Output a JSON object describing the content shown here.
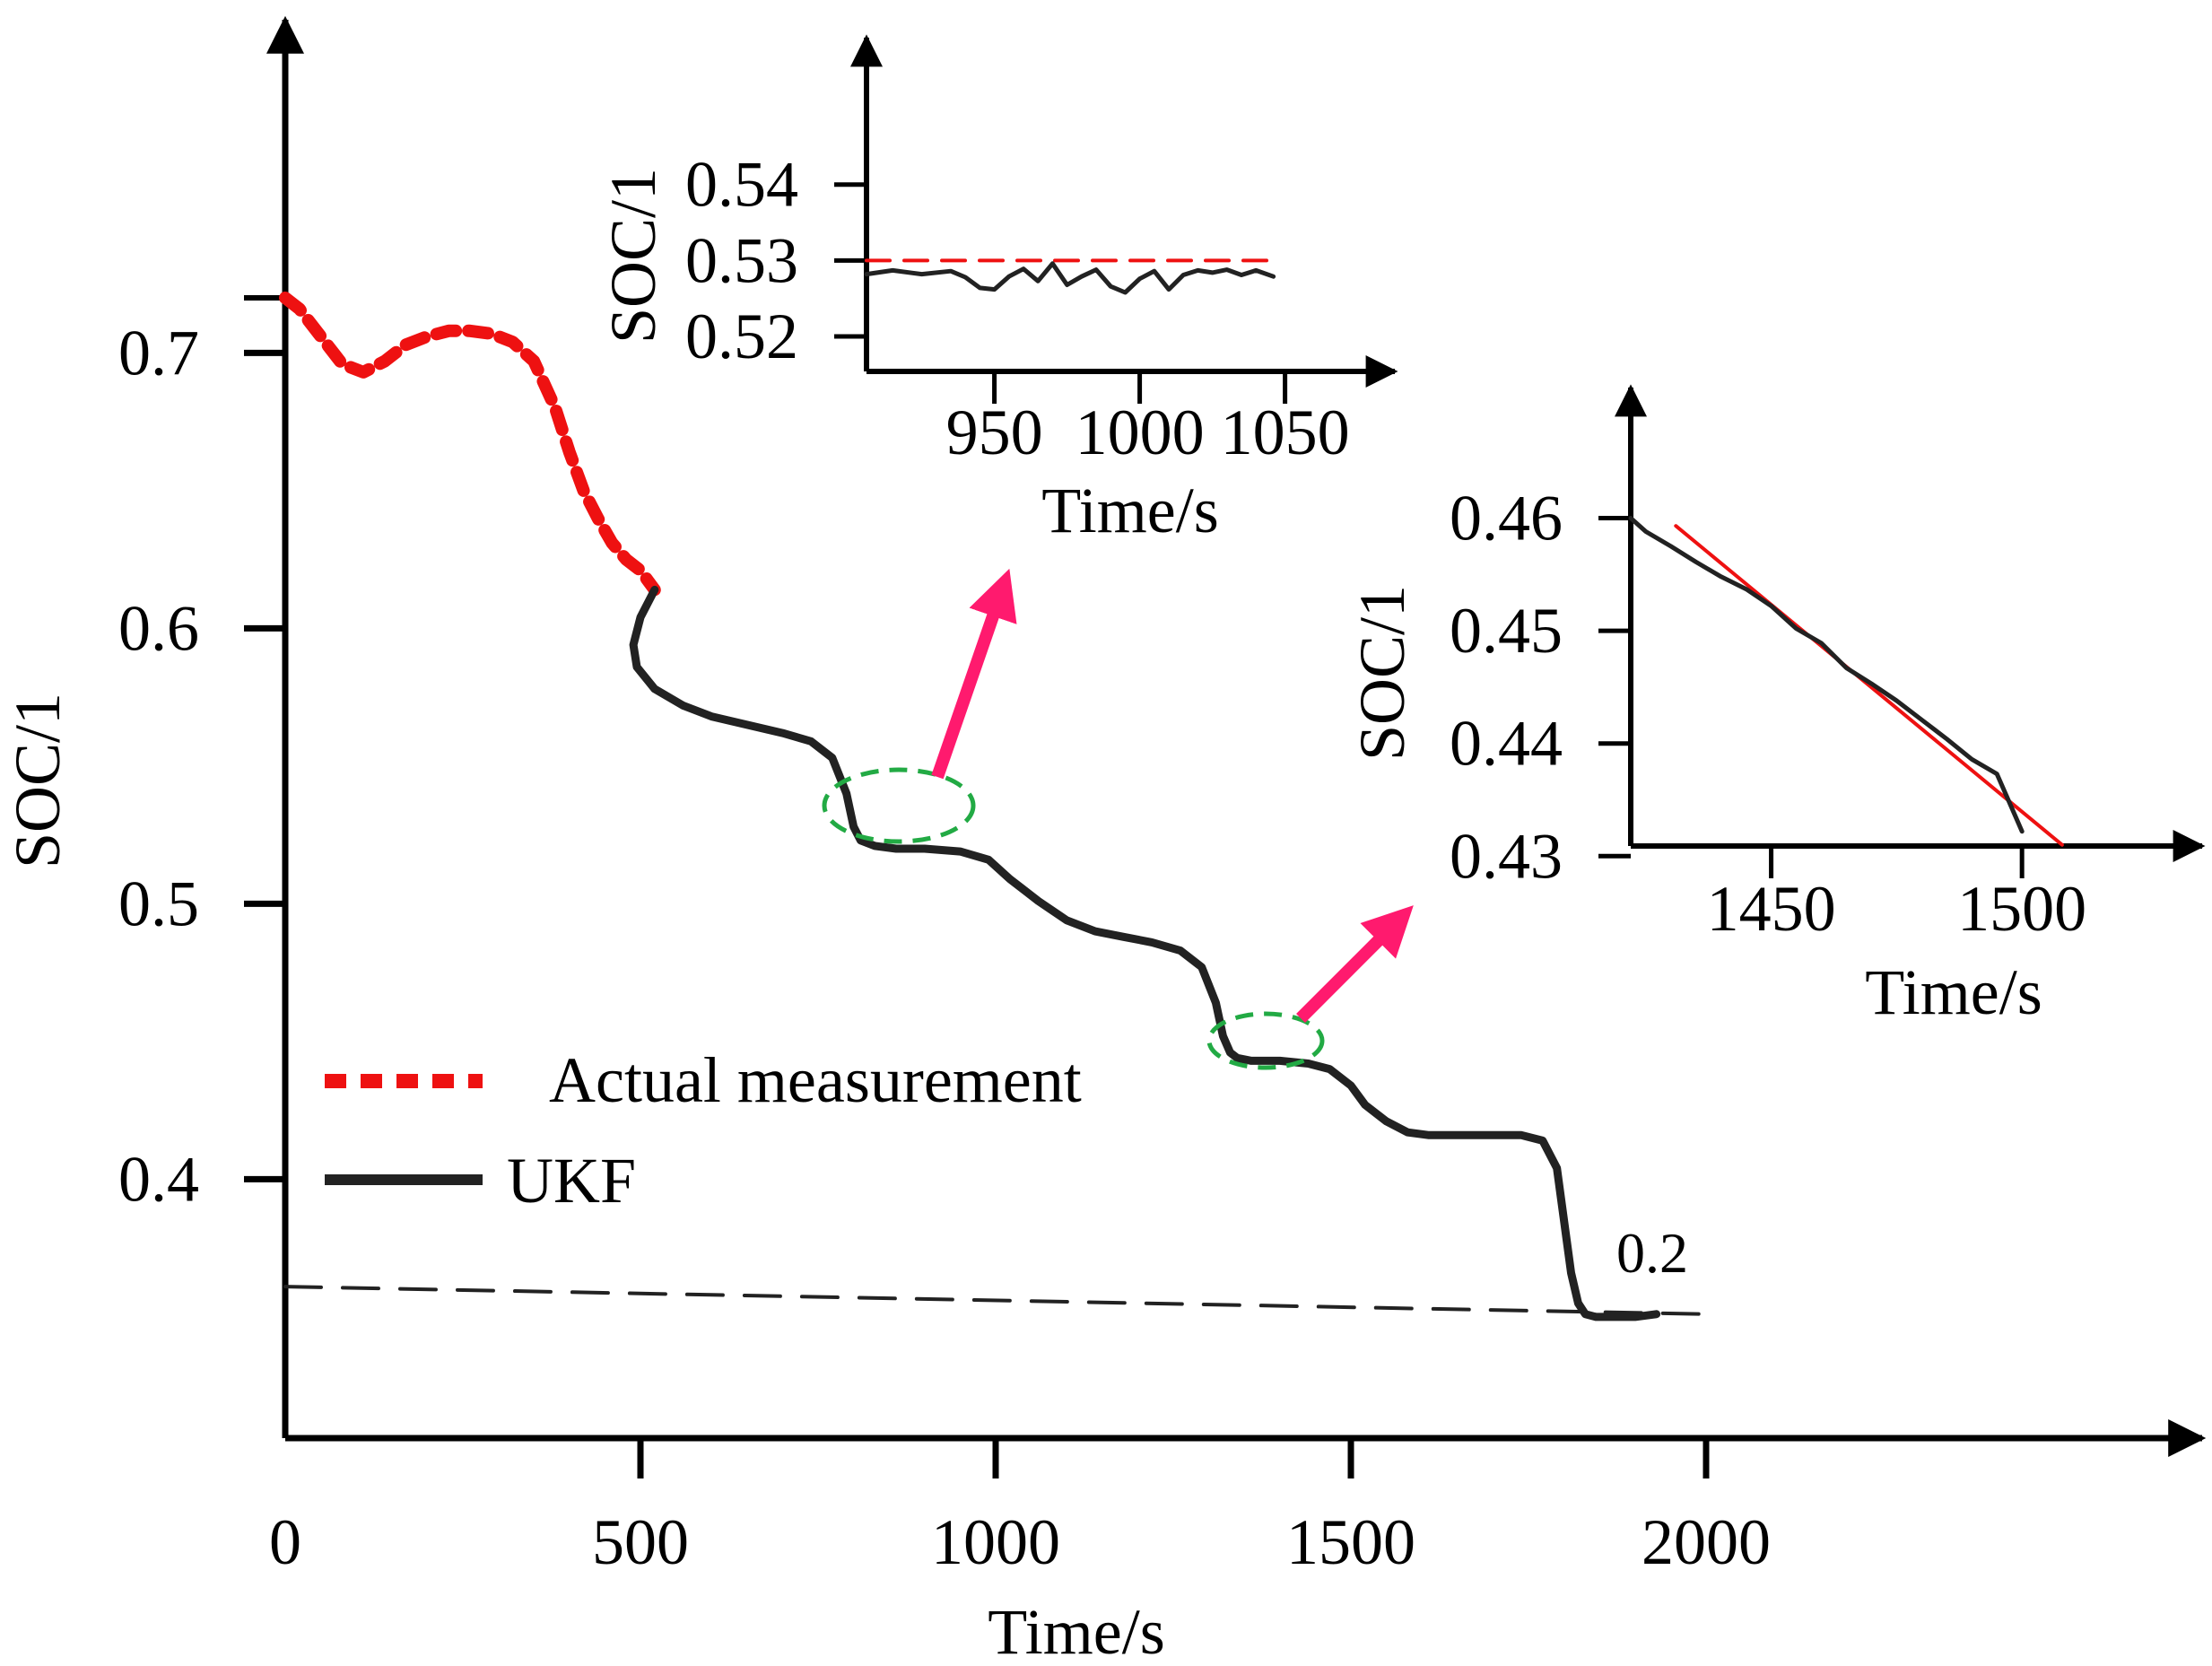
{
  "chart_data": [
    {
      "id": "main",
      "type": "line",
      "xlabel": "Time/s",
      "ylabel": "SOC/1",
      "x_ticks": [
        0,
        500,
        1000,
        1500,
        2000
      ],
      "x_tick_labels": [
        "0",
        "500",
        "1000",
        "1500",
        "2000"
      ],
      "y_ticks": [
        0.4,
        0.5,
        0.6,
        0.7
      ],
      "y_tick_labels": [
        "0.4",
        "0.5",
        "0.6",
        "0.7"
      ],
      "xlim": [
        0,
        2700
      ],
      "ylim": [
        0.306,
        0.72
      ],
      "grid": false,
      "legend_position": "lower-left",
      "series": [
        {
          "name": "Actual measurement",
          "color": "#ee1111",
          "style": "dashed",
          "x": [
            0,
            20,
            50,
            80,
            110,
            140,
            170,
            200,
            230,
            260,
            290,
            320,
            350,
            380,
            400,
            420,
            440,
            460,
            480,
            500,
            520
          ],
          "y": [
            0.72,
            0.716,
            0.706,
            0.696,
            0.693,
            0.697,
            0.703,
            0.706,
            0.708,
            0.708,
            0.707,
            0.704,
            0.697,
            0.68,
            0.664,
            0.65,
            0.64,
            0.631,
            0.625,
            0.621,
            0.614
          ]
        },
        {
          "name": "UKF",
          "color": "#222222",
          "style": "solid",
          "x": [
            520,
            500,
            490,
            495,
            520,
            560,
            600,
            650,
            700,
            740,
            770,
            790,
            800,
            810,
            830,
            860,
            900,
            950,
            990,
            1020,
            1060,
            1100,
            1140,
            1180,
            1220,
            1260,
            1290,
            1310,
            1320,
            1330,
            1340,
            1360,
            1400,
            1440,
            1470,
            1500,
            1520,
            1550,
            1580,
            1610,
            1650,
            1700,
            1740,
            1770,
            1790,
            1800,
            1810,
            1820,
            1830,
            1845,
            1870,
            1900,
            1930
          ],
          "y": [
            0.614,
            0.604,
            0.594,
            0.586,
            0.578,
            0.572,
            0.568,
            0.565,
            0.562,
            0.559,
            0.553,
            0.54,
            0.528,
            0.523,
            0.521,
            0.52,
            0.52,
            0.519,
            0.516,
            0.509,
            0.501,
            0.494,
            0.49,
            0.488,
            0.486,
            0.483,
            0.477,
            0.464,
            0.452,
            0.446,
            0.444,
            0.443,
            0.443,
            0.442,
            0.44,
            0.434,
            0.427,
            0.421,
            0.417,
            0.416,
            0.416,
            0.416,
            0.416,
            0.414,
            0.404,
            0.385,
            0.366,
            0.355,
            0.351,
            0.35,
            0.35,
            0.35,
            0.351
          ]
        },
        {
          "name": "",
          "color": "#222222",
          "style": "dashed",
          "x": [
            0,
            2000
          ],
          "y": [
            0.361,
            0.351
          ]
        }
      ],
      "annotations": [
        {
          "text": "0.2",
          "x": 1930,
          "y": 0.36
        }
      ],
      "highlights": [
        {
          "x": 900,
          "y": 0.521
        },
        {
          "x": 1450,
          "y": 0.444
        }
      ],
      "arrow_color": "#ff1a6e",
      "highlight_color": "#22aa44"
    },
    {
      "id": "inset1",
      "type": "line",
      "xlabel": "Time/s",
      "ylabel": "SOC/1",
      "x_ticks": [
        950,
        1000,
        1050
      ],
      "x_tick_labels": [
        "950",
        "1000",
        "1050"
      ],
      "y_ticks": [
        0.52,
        0.53,
        0.54
      ],
      "y_tick_labels": [
        "0.52",
        "0.53",
        "0.54"
      ],
      "xlim": [
        906,
        1060
      ],
      "ylim": [
        0.5154,
        0.548
      ],
      "series": [
        {
          "name": "",
          "color": "#ee1111",
          "style": "dashed",
          "x": [
            906,
            1046
          ],
          "y": [
            0.53,
            0.53
          ]
        },
        {
          "name": "",
          "color": "#222222",
          "style": "solid",
          "x": [
            906,
            915,
            925,
            935,
            940,
            945,
            950,
            955,
            960,
            965,
            970,
            975,
            980,
            985,
            990,
            995,
            1000,
            1005,
            1010,
            1015,
            1020,
            1025,
            1030,
            1035,
            1040,
            1046
          ],
          "y": [
            0.5282,
            0.5287,
            0.5282,
            0.5286,
            0.5278,
            0.5264,
            0.5262,
            0.5279,
            0.5289,
            0.5273,
            0.5296,
            0.5268,
            0.5279,
            0.5288,
            0.5266,
            0.5258,
            0.5276,
            0.5286,
            0.5262,
            0.5281,
            0.5287,
            0.5284,
            0.5288,
            0.5281,
            0.5287,
            0.5279
          ]
        }
      ]
    },
    {
      "id": "inset2",
      "type": "line",
      "xlabel": "Time/s",
      "ylabel": "SOC/1",
      "x_ticks": [
        1450,
        1500
      ],
      "x_tick_labels": [
        "1450",
        "1500"
      ],
      "y_ticks": [
        0.43,
        0.44,
        0.45,
        0.46
      ],
      "y_tick_labels": [
        "0.43",
        "0.44",
        "0.45",
        "0.46"
      ],
      "xlim": [
        1422,
        1520
      ],
      "ylim": [
        0.4309,
        0.4633
      ],
      "series": [
        {
          "name": "",
          "color": "#ee1111",
          "style": "solid",
          "x": [
            1431,
            1508
          ],
          "y": [
            0.4593,
            0.431
          ]
        },
        {
          "name": "",
          "color": "#222222",
          "style": "solid",
          "x": [
            1422,
            1425,
            1430,
            1435,
            1440,
            1445,
            1450,
            1455,
            1460,
            1465,
            1470,
            1475,
            1480,
            1485,
            1490,
            1495,
            1500
          ],
          "y": [
            0.46,
            0.4588,
            0.4575,
            0.4561,
            0.4548,
            0.4537,
            0.4522,
            0.4502,
            0.4489,
            0.4467,
            0.4453,
            0.4438,
            0.4421,
            0.4404,
            0.4386,
            0.4373,
            0.4322
          ]
        }
      ]
    }
  ]
}
